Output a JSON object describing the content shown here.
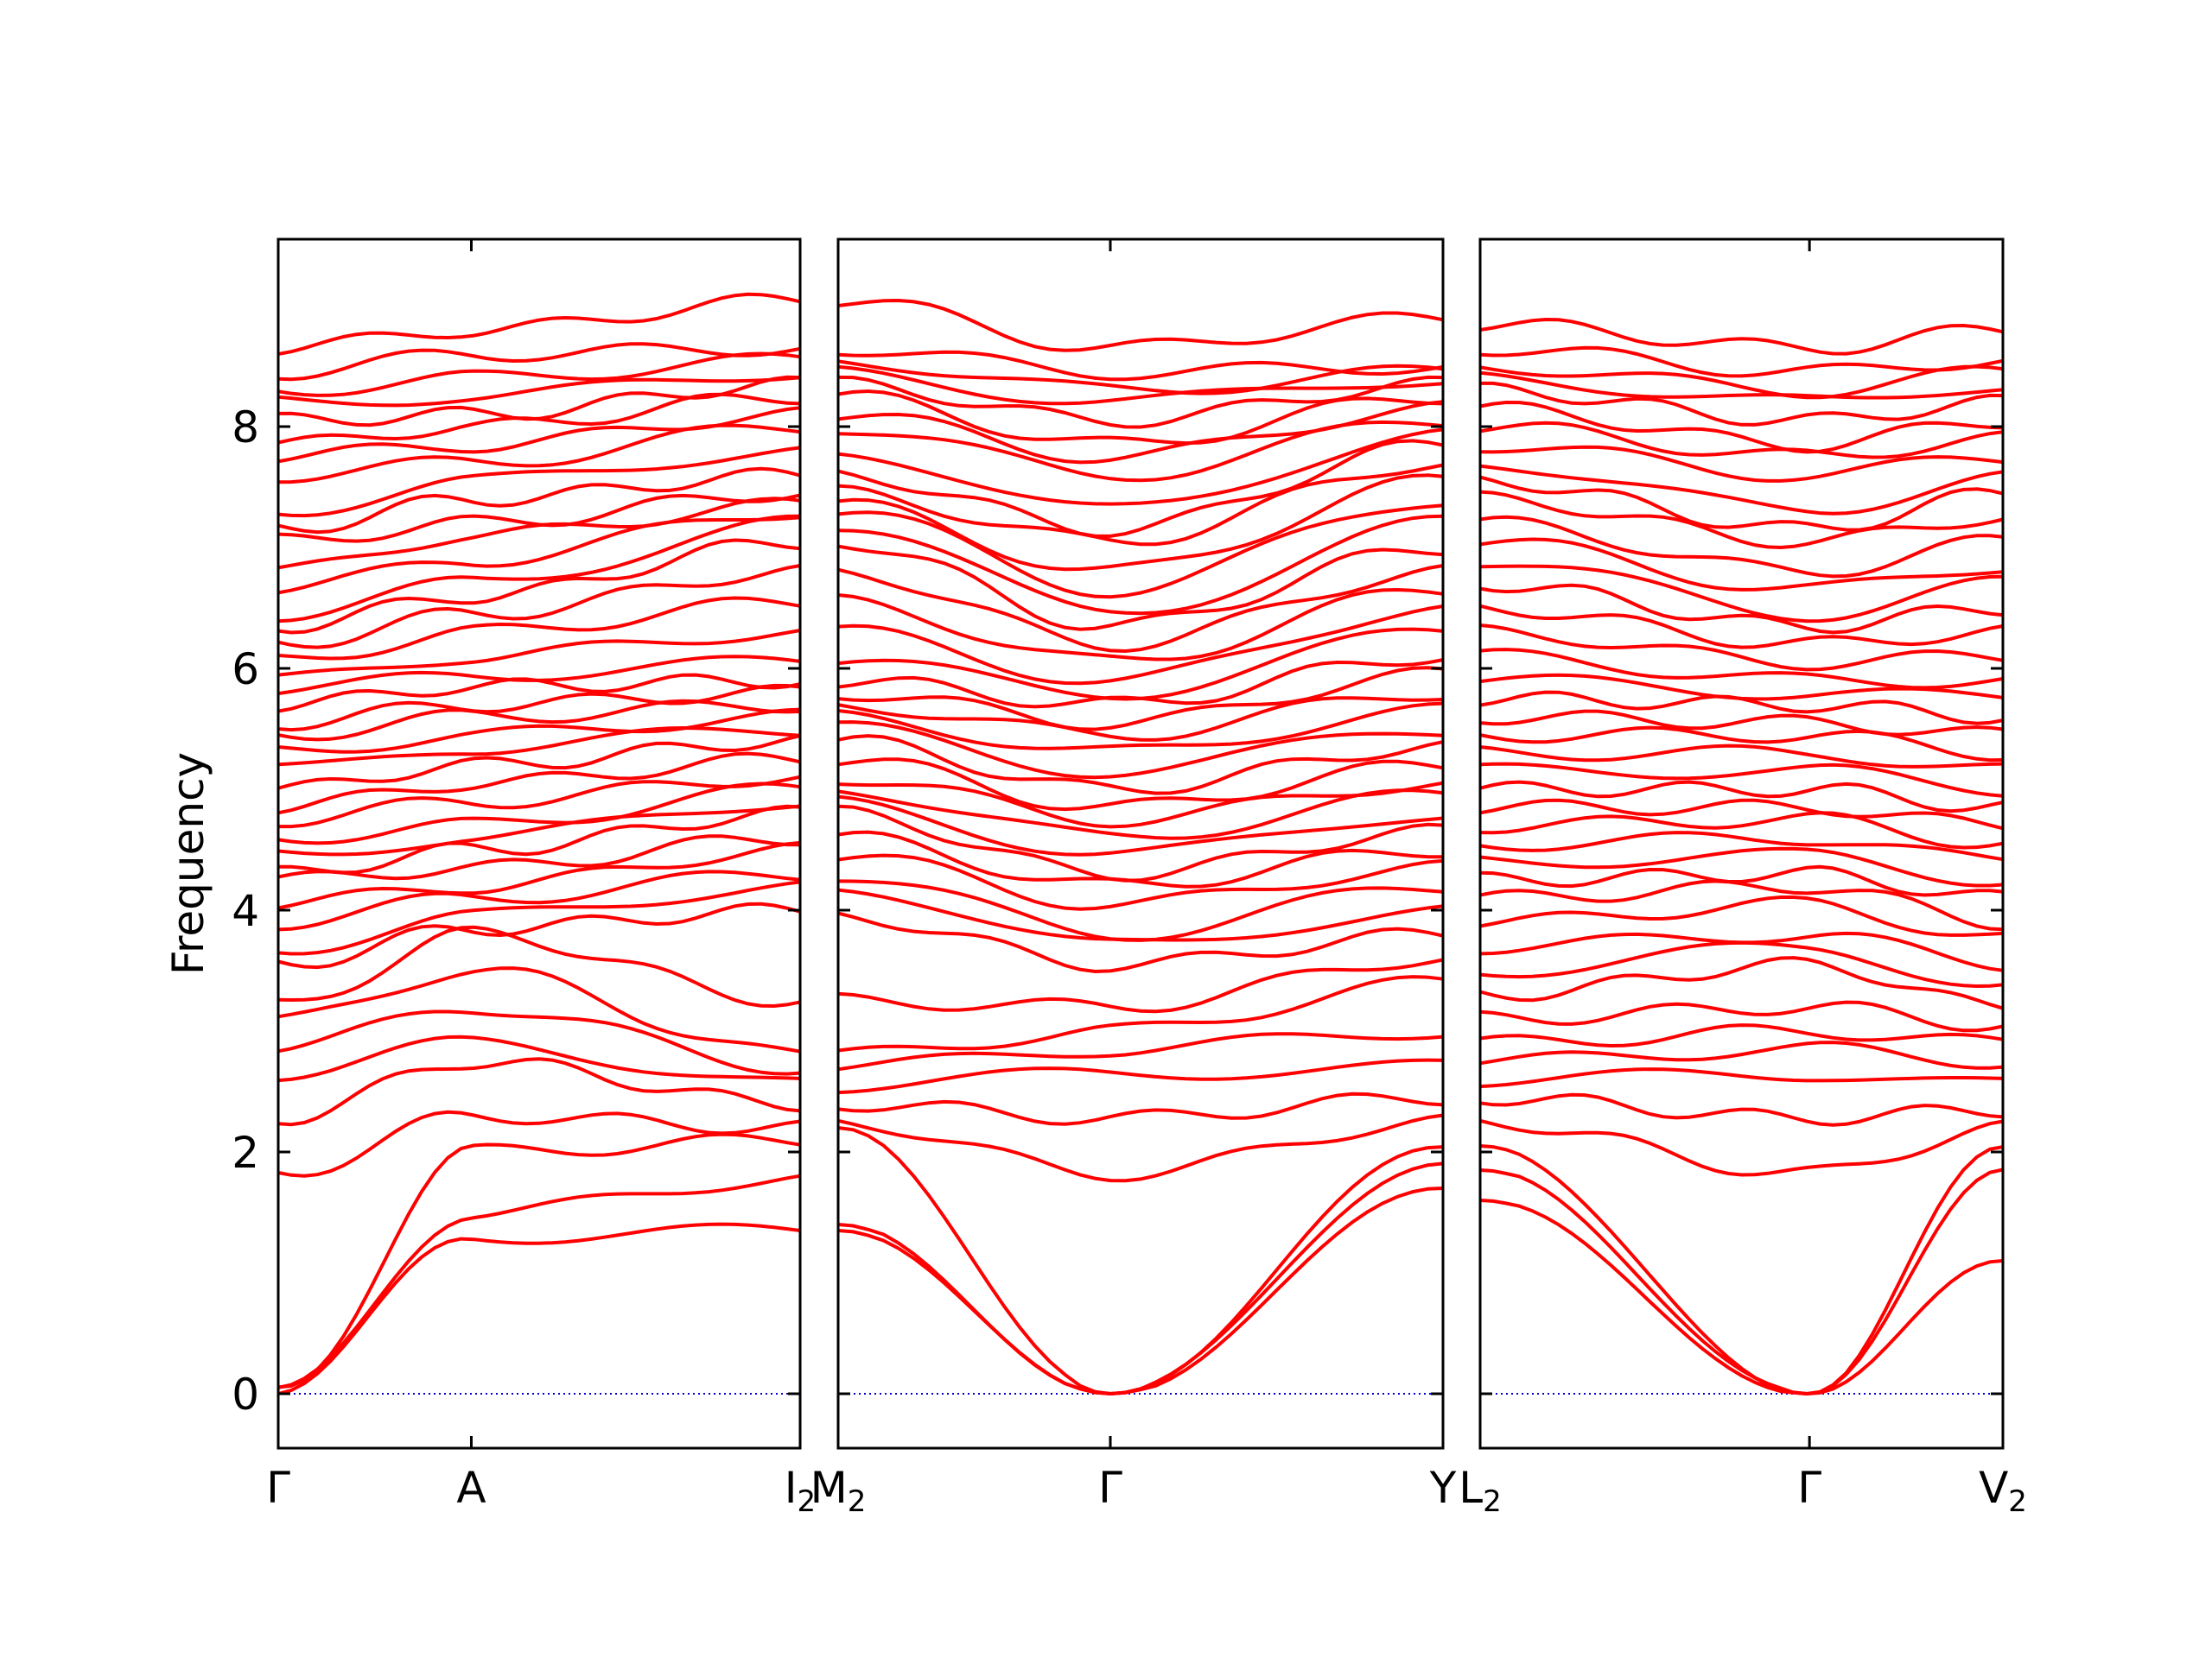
{
  "chart_data": {
    "type": "line",
    "description_kind": "phonon band structure, three panels sharing y axis",
    "ylabel": "Frequency",
    "ylim": [
      -0.45,
      9.55
    ],
    "yticks": [
      "0",
      "2",
      "4",
      "6",
      "8"
    ],
    "ytick_values": [
      0,
      2,
      4,
      6,
      8
    ],
    "zero_line": {
      "value": 0,
      "style": "dotted",
      "color": "#0000cc"
    },
    "band_color": "#ff0000",
    "panels": [
      {
        "x_labels": [
          {
            "text": "Γ",
            "sub": "",
            "pos": 0.0
          },
          {
            "text": "A",
            "sub": "",
            "pos": 0.37
          },
          {
            "text": "I",
            "sub": "2",
            "pos": 1.0
          }
        ],
        "start_freqs": [
          0,
          0,
          0,
          1.82,
          2.28,
          2.65,
          2.85,
          3.08,
          3.2,
          3.55,
          3.68,
          3.9,
          4.05,
          4.25,
          4.3,
          4.45,
          4.6,
          4.75,
          4.85,
          5.0,
          5.15,
          5.3,
          5.45,
          5.55,
          5.7,
          5.8,
          5.9,
          6.05,
          6.2,
          6.35,
          6.45,
          6.65,
          6.8,
          7.05,
          7.15,
          7.3,
          7.6,
          7.75,
          7.85,
          8.05,
          8.2,
          8.3,
          8.45,
          8.65
        ],
        "mid_freqs": [
          1.3,
          1.5,
          2.0,
          2.3,
          2.75,
          2.9,
          3.2,
          3.5,
          3.8,
          3.85,
          3.95,
          4.1,
          4.2,
          4.35,
          4.5,
          4.6,
          4.7,
          4.9,
          5.05,
          5.2,
          5.35,
          5.45,
          5.6,
          5.7,
          5.85,
          5.95,
          6.1,
          6.3,
          6.45,
          6.6,
          6.7,
          6.9,
          7.1,
          7.2,
          7.4,
          7.55,
          7.7,
          7.85,
          8.0,
          8.1,
          8.25,
          8.4,
          8.6,
          8.8
        ],
        "end_freqs": [
          1.35,
          1.78,
          2.1,
          2.2,
          2.4,
          2.55,
          2.7,
          2.8,
          3.25,
          4.0,
          4.2,
          4.3,
          4.5,
          4.6,
          4.8,
          4.9,
          5.0,
          5.1,
          5.25,
          5.4,
          5.5,
          5.6,
          5.7,
          5.8,
          5.9,
          6.05,
          6.3,
          6.55,
          6.8,
          7.05,
          7.2,
          7.3,
          7.35,
          7.45,
          7.6,
          7.8,
          8.0,
          8.1,
          8.25,
          8.35,
          8.45,
          8.55,
          8.65,
          9.05
        ]
      },
      {
        "x_labels": [
          {
            "text": "M",
            "sub": "2",
            "pos": 0.0
          },
          {
            "text": "Γ",
            "sub": "",
            "pos": 0.45
          },
          {
            "text": "Y",
            "sub": "",
            "pos": 1.0
          }
        ],
        "start_freqs": [
          1.35,
          1.4,
          2.2,
          2.25,
          2.4,
          2.55,
          2.7,
          2.8,
          3.25,
          3.95,
          4.2,
          4.3,
          4.45,
          4.6,
          4.8,
          4.9,
          5.0,
          5.1,
          5.25,
          5.4,
          5.5,
          5.6,
          5.7,
          5.8,
          5.9,
          6.05,
          6.3,
          6.55,
          6.8,
          7.05,
          7.2,
          7.3,
          7.35,
          7.45,
          7.6,
          7.8,
          8.0,
          8.1,
          8.25,
          8.35,
          8.45,
          8.55,
          8.65,
          9.05
        ],
        "mid_freqs": [
          0,
          0,
          0,
          1.82,
          2.28,
          2.65,
          2.85,
          3.0,
          3.2,
          3.55,
          3.7,
          3.8,
          4.05,
          4.2,
          4.3,
          4.45,
          4.6,
          4.75,
          4.85,
          5.0,
          5.15,
          5.3,
          5.45,
          5.55,
          5.7,
          5.8,
          5.9,
          6.05,
          6.2,
          6.35,
          6.45,
          6.65,
          6.8,
          7.05,
          7.15,
          7.3,
          7.6,
          7.75,
          7.85,
          8.05,
          8.2,
          8.3,
          8.45,
          8.65
        ],
        "end_freqs": [
          1.7,
          1.9,
          2.05,
          2.25,
          2.45,
          2.7,
          3.0,
          3.4,
          3.6,
          3.8,
          4.0,
          4.2,
          4.35,
          4.5,
          4.65,
          4.8,
          4.95,
          5.05,
          5.2,
          5.35,
          5.5,
          5.65,
          5.8,
          5.95,
          6.1,
          6.3,
          6.5,
          6.65,
          6.8,
          7.0,
          7.2,
          7.4,
          7.55,
          7.7,
          7.85,
          7.95,
          8.05,
          8.15,
          8.25,
          8.35,
          8.4,
          8.45,
          8.5,
          8.9
        ]
      },
      {
        "x_labels": [
          {
            "text": "L",
            "sub": "2",
            "pos": 0.0
          },
          {
            "text": "Γ",
            "sub": "",
            "pos": 0.63
          },
          {
            "text": "V",
            "sub": "2",
            "pos": 1.0
          }
        ],
        "start_freqs": [
          1.6,
          1.85,
          2.05,
          2.25,
          2.45,
          2.6,
          2.75,
          2.9,
          3.1,
          3.3,
          3.5,
          3.7,
          3.9,
          4.1,
          4.25,
          4.4,
          4.55,
          4.7,
          4.85,
          5.0,
          5.15,
          5.3,
          5.45,
          5.6,
          5.75,
          5.9,
          6.1,
          6.3,
          6.5,
          6.7,
          6.9,
          7.05,
          7.2,
          7.4,
          7.55,
          7.7,
          7.85,
          8.0,
          8.15,
          8.3,
          8.4,
          8.5,
          8.65,
          8.85
        ],
        "mid_freqs": [
          0,
          0,
          0,
          1.82,
          2.28,
          2.65,
          2.85,
          3.0,
          3.2,
          3.55,
          3.7,
          3.8,
          4.05,
          4.2,
          4.3,
          4.45,
          4.6,
          4.75,
          4.85,
          5.0,
          5.15,
          5.3,
          5.45,
          5.55,
          5.7,
          5.8,
          5.9,
          6.05,
          6.2,
          6.35,
          6.45,
          6.65,
          6.8,
          7.05,
          7.15,
          7.3,
          7.6,
          7.75,
          7.85,
          8.05,
          8.2,
          8.3,
          8.45,
          8.65
        ],
        "end_freqs": [
          1.1,
          1.85,
          2.05,
          2.2,
          2.35,
          2.55,
          2.75,
          2.9,
          3.05,
          3.2,
          3.35,
          3.55,
          3.75,
          3.9,
          4.1,
          4.25,
          4.4,
          4.55,
          4.7,
          4.85,
          5.0,
          5.15,
          5.3,
          5.45,
          5.6,
          5.75,
          5.9,
          6.1,
          6.3,
          6.5,
          6.7,
          6.85,
          7.05,
          7.25,
          7.45,
          7.6,
          7.75,
          7.9,
          8.05,
          8.2,
          8.35,
          8.45,
          8.55,
          8.8
        ]
      }
    ]
  }
}
